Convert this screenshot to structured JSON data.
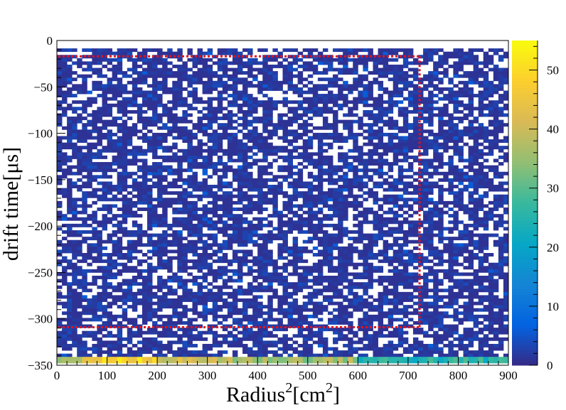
{
  "chart_data": {
    "type": "heatmap",
    "title": "",
    "xlabel": {
      "base": "Radius",
      "sup1": "2",
      "mid": "[cm",
      "sup2": "2",
      "end": "]"
    },
    "ylabel": "drift time[μs]",
    "xlim": [
      0,
      900
    ],
    "ylim": [
      -350,
      0
    ],
    "x_ticks": [
      0,
      100,
      200,
      300,
      400,
      500,
      600,
      700,
      800,
      900
    ],
    "y_ticks": [
      0,
      -50,
      -100,
      -150,
      -200,
      -250,
      -300,
      -350
    ],
    "x_bin_width": 10,
    "y_bin_width": 3.5,
    "occupied_y_range": [
      -341,
      -9
    ],
    "typical_cell_count": "0–5 counts, roughly 30% of cells empty",
    "bottom_band": {
      "y_range": [
        -348,
        -341
      ],
      "counts_by_x": [
        {
          "x": [
            0,
            50
          ],
          "count": 35
        },
        {
          "x": [
            50,
            200
          ],
          "count": 48
        },
        {
          "x": [
            200,
            350
          ],
          "count": 40
        },
        {
          "x": [
            350,
            600
          ],
          "count": 36
        },
        {
          "x": [
            600,
            900
          ],
          "count": 25
        }
      ]
    },
    "colorbar": {
      "range": [
        0,
        55
      ],
      "ticks": [
        0,
        10,
        20,
        30,
        40,
        50
      ],
      "colormap": "parula",
      "colors": [
        "#352a87",
        "#0363e1",
        "#1485d4",
        "#06a7c6",
        "#38b99e",
        "#92bf73",
        "#d9ba56",
        "#fcce2e",
        "#f9fb0e"
      ]
    },
    "annotation_box": {
      "x_range": [
        0,
        723
      ],
      "y_range": [
        -309,
        -17
      ],
      "color": "#e3121d",
      "style": "dotted"
    }
  }
}
